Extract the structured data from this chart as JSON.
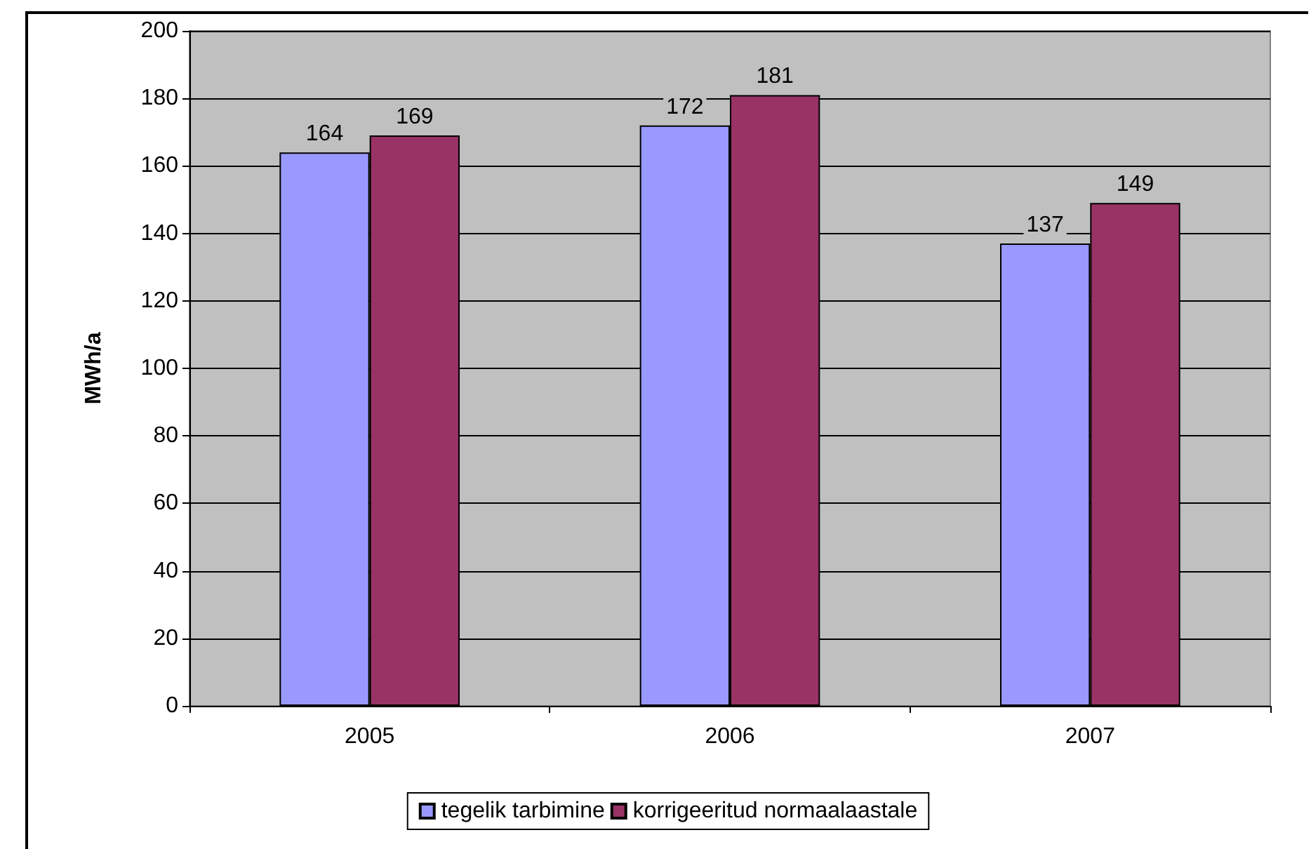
{
  "chart_data": {
    "type": "bar",
    "ylabel": "MWh/a",
    "categories": [
      "2005",
      "2006",
      "2007"
    ],
    "series": [
      {
        "name": "tegelik tarbimine",
        "color": "#9999ff",
        "values": [
          164,
          172,
          137
        ]
      },
      {
        "name": "korrigeeritud normaalaastale",
        "color": "#993366",
        "values": [
          169,
          181,
          149
        ]
      }
    ],
    "ylim": [
      0,
      200
    ],
    "yticks": [
      0,
      20,
      40,
      60,
      80,
      100,
      120,
      140,
      160,
      180,
      200
    ],
    "grid": "y",
    "legend": "bottom",
    "data_labels": true
  }
}
